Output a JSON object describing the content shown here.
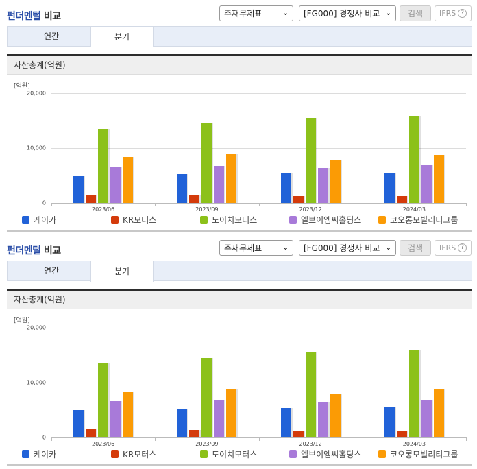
{
  "sections": [
    {
      "title_blue": "펀더멘털",
      "title_plain": "비교",
      "statement_select": {
        "value": "주재무제표"
      },
      "compare_select": {
        "value": "[FG000] 경쟁사 비교"
      },
      "search_button": "검색",
      "ifrs_button": "IFRS",
      "help_icon": "?",
      "tabs": [
        {
          "label": "연간",
          "active": false
        },
        {
          "label": "분기",
          "active": true
        }
      ],
      "metric_header": "자산총계(억원)"
    },
    {
      "title_blue": "펀더멘털",
      "title_plain": "비교",
      "statement_select": {
        "value": "주재무제표"
      },
      "compare_select": {
        "value": "[FG000] 경쟁사 비교"
      },
      "search_button": "검색",
      "ifrs_button": "IFRS",
      "help_icon": "?",
      "tabs": [
        {
          "label": "연간",
          "active": false
        },
        {
          "label": "분기",
          "active": true
        }
      ],
      "metric_header": "자산총계(억원)"
    }
  ],
  "colors": {
    "케이카": "#2162d8",
    "KR모터스": "#d43b0b",
    "도이치모터스": "#8cc11a",
    "엘브이엠씨홀딩스": "#a87ad9",
    "코오롱모빌리티그룹": "#fb9b05"
  },
  "chart_data": [
    {
      "type": "bar",
      "title": "자산총계(억원)",
      "unit_label": "[억원]",
      "xlabel": "",
      "ylabel": "억원",
      "ylim": [
        0,
        20000
      ],
      "yticks": [
        "0",
        "10,000",
        "20,000"
      ],
      "grid": true,
      "legend_position": "bottom",
      "categories": [
        "2023/06",
        "2023/09",
        "2023/12",
        "2024/03"
      ],
      "series": [
        {
          "name": "케이카",
          "values": [
            5000,
            5200,
            5300,
            5500
          ]
        },
        {
          "name": "KR모터스",
          "values": [
            1500,
            1400,
            1300,
            1300
          ]
        },
        {
          "name": "도이치모터스",
          "values": [
            13500,
            14500,
            15500,
            15800
          ]
        },
        {
          "name": "엘브이엠씨홀딩스",
          "values": [
            6600,
            6700,
            6300,
            6800
          ]
        },
        {
          "name": "코오롱모빌리티그룹",
          "values": [
            8300,
            8900,
            7800,
            8700
          ]
        }
      ]
    },
    {
      "type": "bar",
      "title": "자산총계(억원)",
      "unit_label": "[억원]",
      "xlabel": "",
      "ylabel": "억원",
      "ylim": [
        0,
        20000
      ],
      "yticks": [
        "0",
        "10,000",
        "20,000"
      ],
      "grid": true,
      "legend_position": "bottom",
      "categories": [
        "2023/06",
        "2023/09",
        "2023/12",
        "2024/03"
      ],
      "series": [
        {
          "name": "케이카",
          "values": [
            5000,
            5200,
            5300,
            5500
          ]
        },
        {
          "name": "KR모터스",
          "values": [
            1500,
            1400,
            1300,
            1300
          ]
        },
        {
          "name": "도이치모터스",
          "values": [
            13500,
            14500,
            15500,
            15800
          ]
        },
        {
          "name": "엘브이엠씨홀딩스",
          "values": [
            6600,
            6700,
            6300,
            6800
          ]
        },
        {
          "name": "코오롱모빌리티그룹",
          "values": [
            8300,
            8900,
            7800,
            8700
          ]
        }
      ]
    }
  ]
}
